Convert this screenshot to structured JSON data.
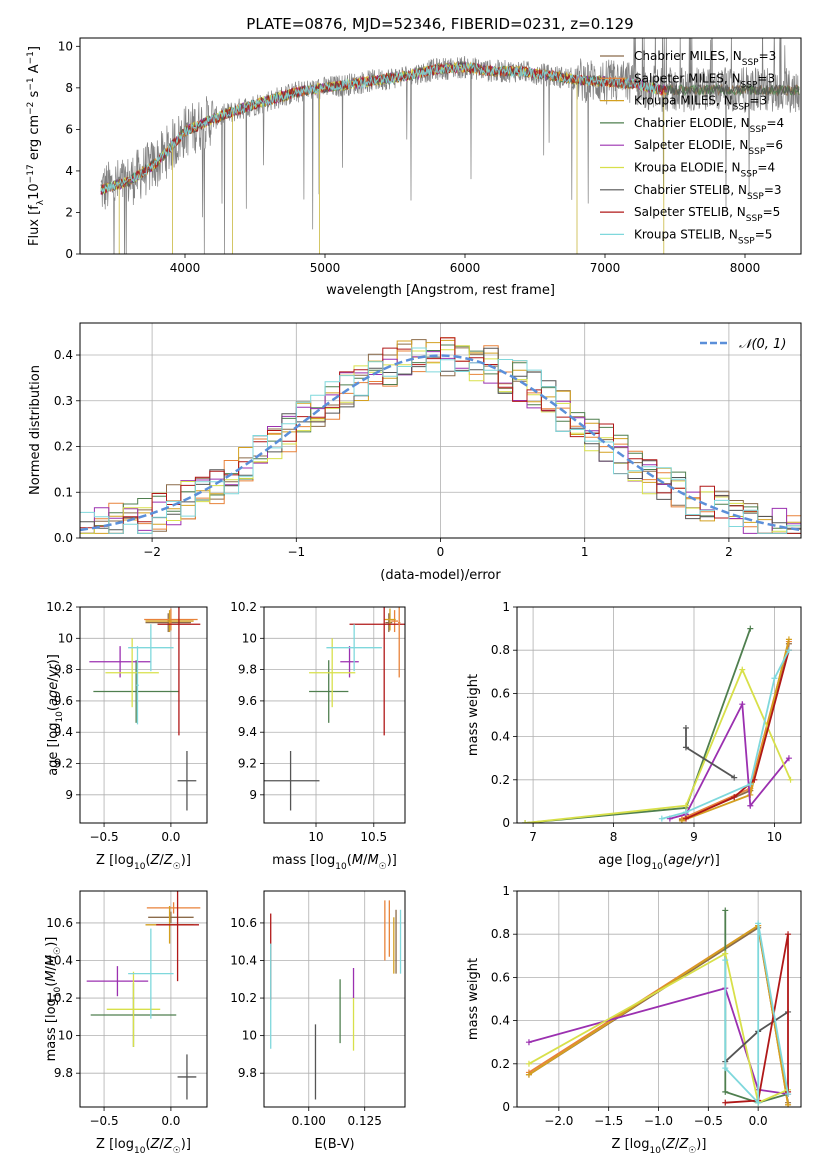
{
  "figure_title": "PLATE=0876, MJD=52346, FIBERID=0231, z=0.129",
  "colors": {
    "Chabrier MILES": "#8b6b4a",
    "Salpeter MILES": "#e8823a",
    "Kroupa MILES": "#d4a020",
    "Chabrier ELODIE": "#4f7f4f",
    "Salpeter ELODIE": "#9b30b0",
    "Kroupa ELODIE": "#d8e04a",
    "Chabrier STELIB": "#555555",
    "Salpeter STELIB": "#b01818",
    "Kroupa STELIB": "#7fd8dc",
    "data": "#808080",
    "gauss": "#5b8fd9"
  },
  "chart_data": [
    {
      "id": "spectrum",
      "type": "line",
      "title": "PLATE=0876, MJD=52346, FIBERID=0231, z=0.129",
      "xlabel": "wavelength [Angstrom, rest frame]",
      "ylabel": "Flux [f_λ 10^-17 erg cm^-2 s^-1 A^-1]",
      "xlim": [
        3250,
        8400
      ],
      "ylim": [
        0,
        10.4
      ],
      "xticks": [
        4000,
        5000,
        6000,
        7000,
        8000
      ],
      "yticks": [
        0,
        2,
        4,
        6,
        8,
        10
      ],
      "legend_position": "right",
      "legend": [
        "Chabrier MILES, N_SSP=3",
        "Salpeter MILES, N_SSP=3",
        "Kroupa MILES, N_SSP=3",
        "Chabrier ELODIE, N_SSP=4",
        "Salpeter ELODIE, N_SSP=6",
        "Kroupa ELODIE, N_SSP=4",
        "Chabrier STELIB, N_SSP=3",
        "Salpeter STELIB, N_SSP=5",
        "Kroupa STELIB, N_SSP=5"
      ],
      "continuum_approx": {
        "x": [
          3400,
          3600,
          3800,
          4000,
          4200,
          4400,
          4600,
          4800,
          5000,
          5200,
          5400,
          5600,
          5800,
          6000,
          6200,
          6400,
          6600,
          6800,
          7000,
          7200,
          7400
        ],
        "y": [
          3.1,
          3.5,
          4.4,
          5.9,
          6.5,
          7.0,
          7.4,
          7.8,
          8.0,
          8.2,
          8.4,
          8.6,
          8.9,
          9.0,
          8.8,
          8.8,
          8.6,
          8.4,
          8.3,
          8.2,
          7.9
        ]
      }
    },
    {
      "id": "residuals",
      "type": "line",
      "xlabel": "(data-model)/error",
      "ylabel": "Normed distribution",
      "xlim": [
        -2.5,
        2.5
      ],
      "ylim": [
        0,
        0.47
      ],
      "xticks": [
        -2,
        -1,
        0,
        1,
        2
      ],
      "xtick_labels": [
        "−2",
        "−1",
        "0",
        "1",
        "2"
      ],
      "yticks": [
        0.0,
        0.1,
        0.2,
        0.3,
        0.4
      ],
      "ytick_labels": [
        "0.0",
        "0.1",
        "0.2",
        "0.3",
        "0.4"
      ],
      "legend": [
        "N(0,1)"
      ],
      "legend_position": "top-right",
      "bin_width": 0.1
    },
    {
      "id": "age_vs_Z",
      "type": "scatter",
      "xlabel": "Z [log10(Z/Z☉)]",
      "ylabel": "age [log10(age/yr)]",
      "xlim": [
        -0.68,
        0.27
      ],
      "ylim": [
        8.82,
        10.2
      ],
      "xticks": [
        -0.5,
        0.0
      ],
      "xtick_labels": [
        "−0.5",
        "0.0"
      ],
      "yticks": [
        9.0,
        9.2,
        9.4,
        9.6,
        9.8,
        10.0,
        10.2
      ],
      "points": [
        {
          "model": "Chabrier MILES",
          "x": -0.02,
          "y": 10.1,
          "xerr": 0.17,
          "yerr": 0.06
        },
        {
          "model": "Salpeter MILES",
          "x": 0.0,
          "y": 10.12,
          "xerr": 0.2,
          "yerr": 0.07
        },
        {
          "model": "Kroupa MILES",
          "x": -0.01,
          "y": 10.11,
          "xerr": 0.18,
          "yerr": 0.07
        },
        {
          "model": "Chabrier ELODIE",
          "x": -0.26,
          "y": 9.66,
          "xerr": 0.32,
          "yerr": 0.2
        },
        {
          "model": "Salpeter ELODIE",
          "x": -0.38,
          "y": 9.85,
          "xerr": 0.23,
          "yerr": 0.1
        },
        {
          "model": "Kroupa ELODIE",
          "x": -0.29,
          "y": 9.78,
          "xerr": 0.2,
          "yerr": 0.22
        },
        {
          "model": "Chabrier STELIB",
          "x": 0.12,
          "y": 9.09,
          "xerr": 0.07,
          "yerr": 0.19
        },
        {
          "model": "Salpeter STELIB",
          "x": 0.06,
          "y": 10.09,
          "xerr": 0.16,
          "yerr": 0.71
        },
        {
          "model": "Kroupa STELIB",
          "x": -0.15,
          "y": 9.94,
          "xerr": 0.17,
          "yerr": 0.15
        },
        {
          "model": "Kroupa STELIB",
          "x": -0.25,
          "y": 9.7,
          "xerr": 0.01,
          "yerr": 0.25
        }
      ]
    },
    {
      "id": "age_vs_mass",
      "type": "scatter",
      "xlabel": "mass [log10(M/M☉)]",
      "xlim": [
        9.55,
        10.77
      ],
      "ylim": [
        8.82,
        10.2
      ],
      "xticks": [
        10.0,
        10.5
      ],
      "yticks": [
        9.0,
        9.2,
        9.4,
        9.6,
        9.8,
        10.0,
        10.2
      ],
      "points": [
        {
          "model": "Chabrier MILES",
          "x": 10.63,
          "y": 10.1,
          "xerr": 0.03,
          "yerr": 0.06
        },
        {
          "model": "Salpeter MILES",
          "x": 10.68,
          "y": 10.11,
          "xerr": 0.03,
          "yerr": 0.07
        },
        {
          "model": "Kroupa MILES",
          "x": 10.64,
          "y": 10.12,
          "xerr": 0.05,
          "yerr": 0.07
        },
        {
          "model": "Chabrier ELODIE",
          "x": 10.11,
          "y": 9.66,
          "xerr": 0.17,
          "yerr": 0.2
        },
        {
          "model": "Salpeter ELODIE",
          "x": 10.29,
          "y": 9.85,
          "xerr": 0.08,
          "yerr": 0.1
        },
        {
          "model": "Kroupa ELODIE",
          "x": 10.14,
          "y": 9.78,
          "xerr": 0.2,
          "yerr": 0.22
        },
        {
          "model": "Chabrier STELIB",
          "x": 9.78,
          "y": 9.09,
          "xerr": 0.25,
          "yerr": 0.19
        },
        {
          "model": "Salpeter STELIB",
          "x": 10.59,
          "y": 10.09,
          "xerr": 0.3,
          "yerr": 0.71
        },
        {
          "model": "Kroupa STELIB",
          "x": 10.33,
          "y": 9.94,
          "xerr": 0.24,
          "yerr": 0.15
        },
        {
          "model": "Salpeter MILES",
          "x": 10.72,
          "y": 10.1,
          "xerr": 0.01,
          "yerr": 0.35
        }
      ]
    },
    {
      "id": "weight_vs_age",
      "type": "line",
      "xlabel": "age [log10(age/yr)]",
      "ylabel": "mass weight",
      "xlim": [
        6.8,
        10.33
      ],
      "ylim": [
        0,
        1.0
      ],
      "xticks": [
        7,
        8,
        9,
        10
      ],
      "yticks": [
        0.0,
        0.2,
        0.4,
        0.6,
        0.8,
        1.0
      ],
      "series": [
        {
          "model": "Chabrier MILES",
          "x": [
            8.85,
            9.7,
            10.18
          ],
          "y": [
            0.015,
            0.15,
            0.83
          ]
        },
        {
          "model": "Salpeter MILES",
          "x": [
            8.85,
            9.7,
            10.18
          ],
          "y": [
            0.02,
            0.16,
            0.84
          ]
        },
        {
          "model": "Kroupa MILES",
          "x": [
            8.85,
            9.7,
            10.18
          ],
          "y": [
            0.01,
            0.13,
            0.85
          ]
        },
        {
          "model": "Chabrier ELODIE",
          "x": [
            6.9,
            8.9,
            9.7
          ],
          "y": [
            0.0,
            0.07,
            0.9
          ]
        },
        {
          "model": "Salpeter ELODIE",
          "x": [
            8.7,
            8.9,
            9.6,
            9.7,
            10.18
          ],
          "y": [
            0.02,
            0.04,
            0.55,
            0.08,
            0.3
          ]
        },
        {
          "model": "Kroupa ELODIE",
          "x": [
            6.9,
            8.9,
            9.6,
            10.2
          ],
          "y": [
            0.0,
            0.08,
            0.71,
            0.2
          ]
        },
        {
          "model": "Chabrier STELIB",
          "x": [
            8.9,
            8.9,
            9.5
          ],
          "y": [
            0.44,
            0.35,
            0.21
          ]
        },
        {
          "model": "Salpeter STELIB",
          "x": [
            8.9,
            9.5,
            9.75,
            10.18
          ],
          "y": [
            0.02,
            0.12,
            0.2,
            0.8
          ]
        },
        {
          "model": "Kroupa STELIB",
          "x": [
            8.6,
            8.9,
            9.7,
            10.0,
            10.18
          ],
          "y": [
            0.02,
            0.05,
            0.18,
            0.67,
            0.8
          ]
        }
      ]
    },
    {
      "id": "mass_vs_Z",
      "type": "scatter",
      "xlabel": "Z [log10(Z/Z☉)]",
      "ylabel": "mass [log10(M/M☉)]",
      "xlim": [
        -0.68,
        0.27
      ],
      "ylim": [
        9.62,
        10.77
      ],
      "xticks": [
        -0.5,
        0.0
      ],
      "xtick_labels": [
        "−0.5",
        "0.0"
      ],
      "yticks": [
        9.8,
        10.0,
        10.2,
        10.4,
        10.6
      ],
      "points": [
        {
          "model": "Chabrier MILES",
          "x": 0.0,
          "y": 10.63,
          "xerr": 0.17,
          "yerr": 0.03
        },
        {
          "model": "Salpeter MILES",
          "x": 0.02,
          "y": 10.68,
          "xerr": 0.2,
          "yerr": 0.03
        },
        {
          "model": "Kroupa MILES",
          "x": -0.01,
          "y": 10.59,
          "xerr": 0.18,
          "yerr": 0.1
        },
        {
          "model": "Chabrier ELODIE",
          "x": -0.28,
          "y": 10.11,
          "xerr": 0.32,
          "yerr": 0.17
        },
        {
          "model": "Salpeter ELODIE",
          "x": -0.4,
          "y": 10.29,
          "xerr": 0.23,
          "yerr": 0.08
        },
        {
          "model": "Kroupa ELODIE",
          "x": -0.28,
          "y": 10.14,
          "xerr": 0.2,
          "yerr": 0.2
        },
        {
          "model": "Chabrier STELIB",
          "x": 0.12,
          "y": 9.78,
          "xerr": 0.07,
          "yerr": 0.12
        },
        {
          "model": "Salpeter STELIB",
          "x": 0.05,
          "y": 10.59,
          "xerr": 0.16,
          "yerr": 0.3
        },
        {
          "model": "Kroupa STELIB",
          "x": -0.15,
          "y": 10.33,
          "xerr": 0.17,
          "yerr": 0.24
        }
      ]
    },
    {
      "id": "mass_vs_EBV",
      "type": "scatter",
      "xlabel": "E(B-V)",
      "xlim": [
        0.08,
        0.143
      ],
      "ylim": [
        9.62,
        10.77
      ],
      "xticks": [
        0.1,
        0.125
      ],
      "xtick_labels": [
        "0.100",
        "0.125"
      ],
      "yticks": [
        9.8,
        10.0,
        10.2,
        10.4,
        10.6
      ],
      "points": [
        {
          "model": "Chabrier MILES",
          "x": 0.139,
          "y": 10.5,
          "yerr": 0.17
        },
        {
          "model": "Salpeter MILES",
          "x": 0.136,
          "y": 10.57,
          "yerr": 0.15
        },
        {
          "model": "Kroupa MILES",
          "x": 0.138,
          "y": 10.48,
          "yerr": 0.15
        },
        {
          "model": "Chabrier ELODIE",
          "x": 0.114,
          "y": 10.13,
          "yerr": 0.17
        },
        {
          "model": "Salpeter ELODIE",
          "x": 0.12,
          "y": 10.28,
          "yerr": 0.08
        },
        {
          "model": "Kroupa ELODIE",
          "x": 0.12,
          "y": 10.06,
          "yerr": 0.14
        },
        {
          "model": "Chabrier STELIB",
          "x": 0.103,
          "y": 9.86,
          "yerr": 0.2
        },
        {
          "model": "Salpeter STELIB",
          "x": 0.083,
          "y": 10.42,
          "yerr": 0.23
        },
        {
          "model": "Kroupa STELIB",
          "x": 0.083,
          "y": 10.21,
          "yerr": 0.28
        },
        {
          "model": "Salpeter MILES",
          "x": 0.134,
          "y": 10.56,
          "yerr": 0.16
        },
        {
          "model": "Kroupa STELIB",
          "x": 0.141,
          "y": 10.5,
          "yerr": 0.17
        }
      ]
    },
    {
      "id": "weight_vs_Z",
      "type": "line",
      "xlabel": "Z [log10(Z/Z☉)]",
      "ylabel": "mass weight",
      "xlim": [
        -2.42,
        0.43
      ],
      "ylim": [
        0,
        1.0
      ],
      "xticks": [
        -2.0,
        -1.5,
        -1.0,
        -0.5,
        0.0
      ],
      "xtick_labels": [
        "−2.0",
        "−1.5",
        "−1.0",
        "−0.5",
        "0.0"
      ],
      "yticks": [
        0.0,
        0.2,
        0.4,
        0.6,
        0.8,
        1.0
      ],
      "series": [
        {
          "model": "Chabrier MILES",
          "x": [
            -2.3,
            0.0,
            0.3
          ],
          "y": [
            0.15,
            0.83,
            0.02
          ]
        },
        {
          "model": "Salpeter MILES",
          "x": [
            -2.3,
            0.0,
            0.3
          ],
          "y": [
            0.16,
            0.84,
            0.01
          ]
        },
        {
          "model": "Kroupa MILES",
          "x": [
            -2.3,
            0.0,
            0.3
          ],
          "y": [
            0.15,
            0.84,
            0.01
          ]
        },
        {
          "model": "Chabrier ELODIE",
          "x": [
            -0.33,
            -0.33,
            0.0,
            0.3
          ],
          "y": [
            0.91,
            0.07,
            0.02,
            0.06
          ]
        },
        {
          "model": "Salpeter ELODIE",
          "x": [
            -2.3,
            -0.33,
            0.0,
            0.3
          ],
          "y": [
            0.3,
            0.55,
            0.08,
            0.06
          ]
        },
        {
          "model": "Kroupa ELODIE",
          "x": [
            -2.3,
            -0.33,
            0.0,
            0.3
          ],
          "y": [
            0.2,
            0.71,
            0.02,
            0.08
          ]
        },
        {
          "model": "Chabrier STELIB",
          "x": [
            -0.33,
            0.0,
            0.3
          ],
          "y": [
            0.21,
            0.35,
            0.44
          ]
        },
        {
          "model": "Salpeter STELIB",
          "x": [
            -0.33,
            0.0,
            0.3,
            0.3
          ],
          "y": [
            0.02,
            0.03,
            0.8,
            0.07
          ]
        },
        {
          "model": "Kroupa STELIB",
          "x": [
            -0.33,
            -0.33,
            0.0,
            0.0,
            0.3
          ],
          "y": [
            0.68,
            0.18,
            0.02,
            0.85,
            0.06
          ]
        }
      ]
    }
  ]
}
